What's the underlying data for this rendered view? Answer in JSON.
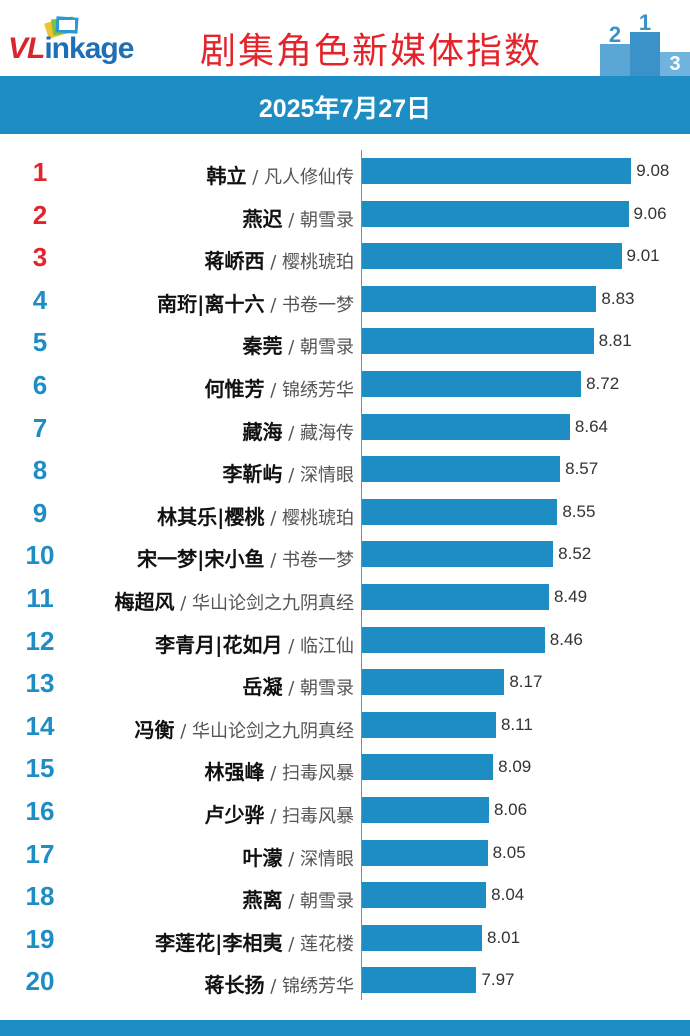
{
  "header": {
    "logo_text_red": "VL",
    "logo_text_blue": "inkage",
    "title": "剧集角色新媒体指数",
    "podium_digits": [
      "2",
      "1",
      "3"
    ]
  },
  "date": "2025年7月27日",
  "colors": {
    "bar": "#1d8dc4",
    "title": "#e3242b",
    "rank_top3": "#e3242b",
    "rank_other": "#1d8dc4"
  },
  "chart_data": {
    "type": "bar",
    "orientation": "horizontal",
    "xlim": [
      7.15,
      9.3
    ],
    "rows": [
      {
        "rank": "1",
        "name": "韩立",
        "show": "凡人修仙传",
        "value": 9.08
      },
      {
        "rank": "2",
        "name": "燕迟",
        "show": "朝雪录",
        "value": 9.06
      },
      {
        "rank": "3",
        "name": "蒋峤西",
        "show": "樱桃琥珀",
        "value": 9.01
      },
      {
        "rank": "4",
        "name": "南珩|离十六",
        "show": "书卷一梦",
        "value": 8.83
      },
      {
        "rank": "5",
        "name": "秦莞",
        "show": "朝雪录",
        "value": 8.81
      },
      {
        "rank": "6",
        "name": "何惟芳",
        "show": "锦绣芳华",
        "value": 8.72
      },
      {
        "rank": "7",
        "name": "藏海",
        "show": "藏海传",
        "value": 8.64
      },
      {
        "rank": "8",
        "name": "李靳屿",
        "show": "深情眼",
        "value": 8.57
      },
      {
        "rank": "9",
        "name": "林其乐|樱桃",
        "show": "樱桃琥珀",
        "value": 8.55
      },
      {
        "rank": "10",
        "name": "宋一梦|宋小鱼",
        "show": "书卷一梦",
        "value": 8.52
      },
      {
        "rank": "11",
        "name": "梅超风",
        "show": "华山论剑之九阴真经",
        "value": 8.49
      },
      {
        "rank": "12",
        "name": "李青月|花如月",
        "show": "临江仙",
        "value": 8.46
      },
      {
        "rank": "13",
        "name": "岳凝",
        "show": "朝雪录",
        "value": 8.17
      },
      {
        "rank": "14",
        "name": "冯衡",
        "show": "华山论剑之九阴真经",
        "value": 8.11
      },
      {
        "rank": "15",
        "name": "林强峰",
        "show": "扫毒风暴",
        "value": 8.09
      },
      {
        "rank": "16",
        "name": "卢少骅",
        "show": "扫毒风暴",
        "value": 8.06
      },
      {
        "rank": "17",
        "name": "叶濛",
        "show": "深情眼",
        "value": 8.05
      },
      {
        "rank": "18",
        "name": "燕离",
        "show": "朝雪录",
        "value": 8.04
      },
      {
        "rank": "19",
        "name": "李莲花|李相夷",
        "show": "莲花楼",
        "value": 8.01
      },
      {
        "rank": "20",
        "name": "蒋长扬",
        "show": "锦绣芳华",
        "value": 7.97
      }
    ]
  }
}
